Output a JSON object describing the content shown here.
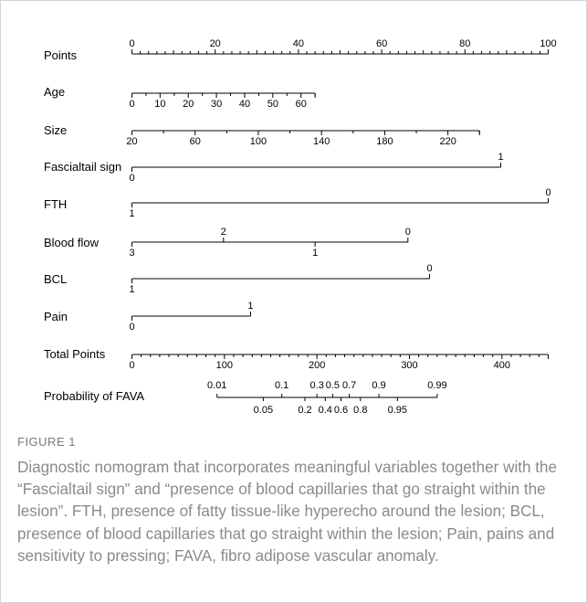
{
  "figure": {
    "label": "FIGURE 1",
    "caption": "Diagnostic nomogram that incorporates meaningful variables together with the “Fascialtail sign” and “presence of blood capillaries that go straight within the lesion”. FTH, presence of fatty tissue-like hyperecho around the lesion; BCL, presence of blood capillaries that go straight within the lesion; Pain, pains and sensitivity to pressing; FAVA, fibro adipose vascular anomaly."
  },
  "chart_data": {
    "type": "nomogram",
    "rows": [
      {
        "label": "Points",
        "min": 0,
        "max": 100,
        "scale_start": 0,
        "scale_end": 100,
        "tick_labels": [
          "0",
          "20",
          "40",
          "60",
          "80",
          "100"
        ],
        "label_values": [
          0,
          20,
          40,
          60,
          80,
          100
        ],
        "minor_step": 2,
        "mid_step": 10,
        "labels_side": "above"
      },
      {
        "label": "Age",
        "min": 0,
        "max": 65,
        "scale_start": 0,
        "scale_end": 44,
        "tick_labels": [
          "0",
          "10",
          "20",
          "30",
          "40",
          "50",
          "60"
        ],
        "label_values": [
          0,
          10,
          20,
          30,
          40,
          50,
          60
        ],
        "minor_step": 5,
        "labels_side": "below"
      },
      {
        "label": "Size",
        "min": 20,
        "max": 240,
        "scale_start": 0,
        "scale_end": 83.5,
        "tick_labels": [
          "20",
          "60",
          "100",
          "140",
          "180",
          "220"
        ],
        "label_values": [
          20,
          60,
          100,
          140,
          180,
          220
        ],
        "minor_step": 20,
        "labels_side": "below"
      },
      {
        "label": "Fascialtail sign",
        "type": "categorical",
        "categories": [
          {
            "label": "0",
            "points": 0,
            "side": "below"
          },
          {
            "label": "1",
            "points": 88.6,
            "side": "above"
          }
        ]
      },
      {
        "label": "FTH",
        "type": "categorical",
        "categories": [
          {
            "label": "1",
            "points": 0,
            "side": "below"
          },
          {
            "label": "0",
            "points": 100,
            "side": "above"
          }
        ]
      },
      {
        "label": "Blood flow",
        "type": "categorical",
        "categories": [
          {
            "label": "3",
            "points": 0,
            "side": "below"
          },
          {
            "label": "2",
            "points": 22,
            "side": "above"
          },
          {
            "label": "1",
            "points": 44,
            "side": "below"
          },
          {
            "label": "0",
            "points": 66.3,
            "side": "above"
          }
        ]
      },
      {
        "label": "BCL",
        "type": "categorical",
        "categories": [
          {
            "label": "1",
            "points": 0,
            "side": "below"
          },
          {
            "label": "0",
            "points": 71.5,
            "side": "above"
          }
        ]
      },
      {
        "label": "Pain",
        "type": "categorical",
        "categories": [
          {
            "label": "0",
            "points": 0,
            "side": "below"
          },
          {
            "label": "1",
            "points": 28.5,
            "side": "above"
          }
        ]
      },
      {
        "label": "Total Points",
        "min": 0,
        "max": 450,
        "scale_start": 0,
        "scale_end": 100,
        "tick_labels": [
          "0",
          "100",
          "200",
          "300",
          "400"
        ],
        "label_values": [
          0,
          100,
          200,
          300,
          400
        ],
        "minor_step": 10,
        "labels_side": "below"
      },
      {
        "label": "Probability of FAVA",
        "type": "probability",
        "ticks": [
          {
            "label": "0.01",
            "total_points": 92,
            "side": "above"
          },
          {
            "label": "0.05",
            "total_points": 142,
            "side": "below"
          },
          {
            "label": "0.1",
            "total_points": 162,
            "side": "above"
          },
          {
            "label": "0.2",
            "total_points": 187,
            "side": "below"
          },
          {
            "label": "0.3",
            "total_points": 200,
            "side": "above"
          },
          {
            "label": "0.4",
            "total_points": 209,
            "side": "below"
          },
          {
            "label": "0.5",
            "total_points": 217,
            "side": "above"
          },
          {
            "label": "0.6",
            "total_points": 226,
            "side": "below"
          },
          {
            "label": "0.7",
            "total_points": 235,
            "side": "above"
          },
          {
            "label": "0.8",
            "total_points": 247,
            "side": "below"
          },
          {
            "label": "0.9",
            "total_points": 267,
            "side": "above"
          },
          {
            "label": "0.95",
            "total_points": 287,
            "side": "below"
          },
          {
            "label": "0.99",
            "total_points": 330,
            "side": "above"
          }
        ]
      }
    ]
  }
}
